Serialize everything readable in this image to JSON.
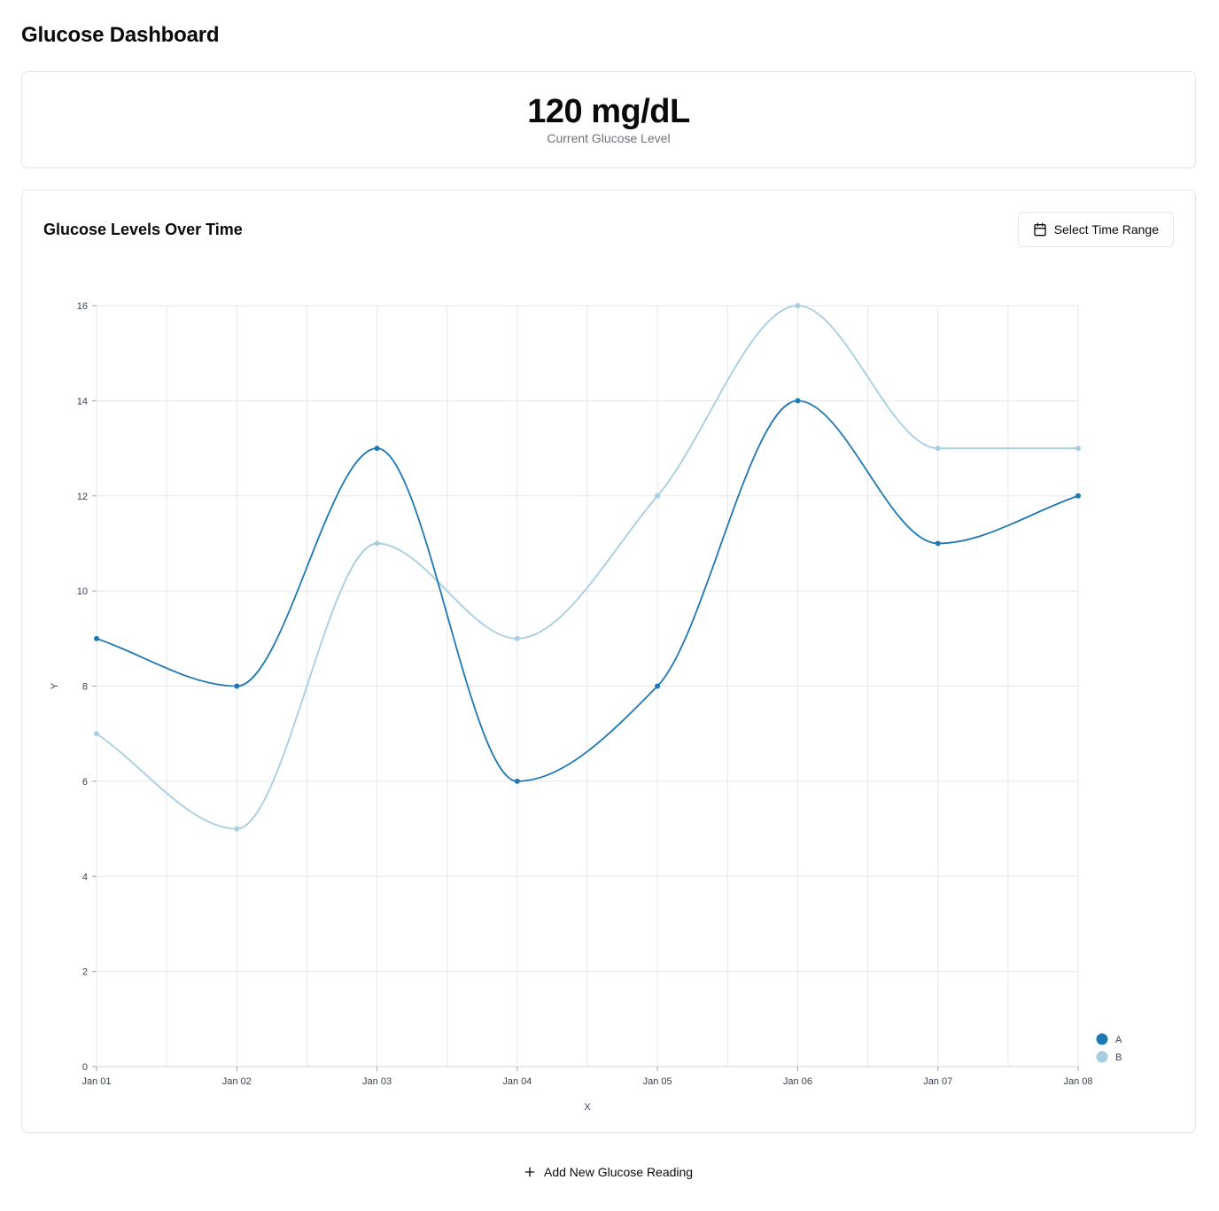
{
  "header": {
    "title": "Glucose Dashboard"
  },
  "current": {
    "value": "120 mg/dL",
    "label": "Current Glucose Level"
  },
  "chart_card": {
    "title": "Glucose Levels Over Time",
    "range_button_label": "Select Time Range",
    "range_button_icon": "calendar-icon"
  },
  "add_reading": {
    "label": "Add New Glucose Reading",
    "icon": "plus-icon"
  },
  "chart_data": {
    "type": "line",
    "title": "",
    "xlabel": "X",
    "ylabel": "Y",
    "categories": [
      "Jan 01",
      "Jan 02",
      "Jan 03",
      "Jan 04",
      "Jan 05",
      "Jan 06",
      "Jan 07",
      "Jan 08"
    ],
    "series": [
      {
        "name": "A",
        "color": "#1f77b4",
        "values": [
          9,
          8,
          13,
          6,
          8,
          14,
          11,
          12
        ]
      },
      {
        "name": "B",
        "color": "#a6cde2",
        "values": [
          7,
          5,
          11,
          9,
          12,
          16,
          13,
          13
        ]
      }
    ],
    "ylim": [
      0,
      16
    ],
    "yticks": [
      0,
      2,
      4,
      6,
      8,
      10,
      12,
      14,
      16
    ],
    "grid": true,
    "curve": "smooth",
    "legend": "bottom-right"
  }
}
